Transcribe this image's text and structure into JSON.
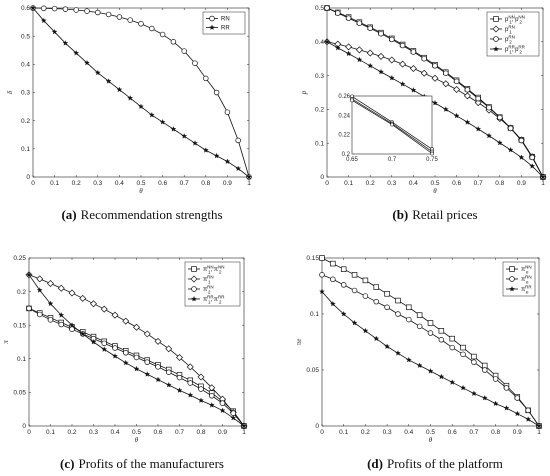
{
  "chart_data": [
    {
      "id": "a",
      "type": "line",
      "caption_tag": "(a)",
      "caption_text": "Recommendation strengths",
      "xlabel": "θ",
      "ylabel": "δ",
      "xlim": [
        0,
        1
      ],
      "ylim": [
        0,
        0.6
      ],
      "xticks": [
        "0",
        "0.1",
        "0.2",
        "0.3",
        "0.4",
        "0.5",
        "0.6",
        "0.7",
        "0.8",
        "0.9",
        "1"
      ],
      "yticks": [
        "0",
        "0.1",
        "0.2",
        "0.3",
        "0.4",
        "0.5",
        "0.6"
      ],
      "legend_position": "top-right",
      "series": [
        {
          "name": "RN",
          "marker": "circle-open",
          "x": [
            0,
            0.05,
            0.1,
            0.15,
            0.2,
            0.25,
            0.3,
            0.35,
            0.4,
            0.45,
            0.5,
            0.55,
            0.6,
            0.65,
            0.7,
            0.75,
            0.8,
            0.85,
            0.9,
            0.95,
            1
          ],
          "y": [
            0.6,
            0.599,
            0.598,
            0.596,
            0.593,
            0.589,
            0.584,
            0.577,
            0.568,
            0.557,
            0.544,
            0.527,
            0.506,
            0.48,
            0.447,
            0.404,
            0.35,
            0.3,
            0.23,
            0.13,
            0
          ]
        },
        {
          "name": "RR",
          "marker": "star",
          "x": [
            0,
            0.05,
            0.1,
            0.15,
            0.2,
            0.25,
            0.3,
            0.35,
            0.4,
            0.45,
            0.5,
            0.55,
            0.6,
            0.65,
            0.7,
            0.75,
            0.8,
            0.85,
            0.9,
            0.95,
            1
          ],
          "y": [
            0.6,
            0.555,
            0.515,
            0.475,
            0.44,
            0.405,
            0.37,
            0.34,
            0.31,
            0.28,
            0.25,
            0.22,
            0.195,
            0.17,
            0.145,
            0.12,
            0.095,
            0.075,
            0.055,
            0.03,
            0
          ]
        }
      ]
    },
    {
      "id": "b",
      "type": "line",
      "caption_tag": "(b)",
      "caption_text": "Retail prices",
      "xlabel": "θ",
      "ylabel": "p",
      "xlim": [
        0,
        1
      ],
      "ylim": [
        0,
        0.5
      ],
      "xticks": [
        "0",
        "0.1",
        "0.2",
        "0.3",
        "0.4",
        "0.5",
        "0.6",
        "0.7",
        "0.8",
        "0.9",
        "1"
      ],
      "yticks": [
        "0",
        "0.1",
        "0.2",
        "0.3",
        "0.4",
        "0.5"
      ],
      "legend_position": "top-right",
      "legend": [
        {
          "base": "p",
          "parts": [
            {
              "sub": "1",
              "sup": "NN"
            },
            {
              "sub": "2",
              "sup": "NN"
            }
          ],
          "marker": "square-open"
        },
        {
          "base": "p",
          "parts": [
            {
              "sub": "1",
              "sup": "RN"
            }
          ],
          "marker": "diamond-open"
        },
        {
          "base": "p",
          "parts": [
            {
              "sub": "2",
              "sup": "RN"
            }
          ],
          "marker": "circle-open"
        },
        {
          "base": "p",
          "parts": [
            {
              "sub": "1",
              "sup": "RR"
            },
            {
              "sub": "2",
              "sup": "RR"
            }
          ],
          "marker": "star"
        }
      ],
      "series": [
        {
          "marker": "square-open",
          "x": [
            0,
            0.05,
            0.1,
            0.15,
            0.2,
            0.25,
            0.3,
            0.35,
            0.4,
            0.45,
            0.5,
            0.55,
            0.6,
            0.65,
            0.7,
            0.75,
            0.8,
            0.85,
            0.9,
            0.95,
            1
          ],
          "y": [
            0.5,
            0.487,
            0.473,
            0.458,
            0.443,
            0.427,
            0.41,
            0.392,
            0.373,
            0.353,
            0.332,
            0.31,
            0.286,
            0.261,
            0.235,
            0.207,
            0.177,
            0.145,
            0.11,
            0.06,
            0
          ]
        },
        {
          "marker": "diamond-open",
          "x": [
            0,
            0.05,
            0.1,
            0.15,
            0.2,
            0.25,
            0.3,
            0.35,
            0.4,
            0.45,
            0.5,
            0.55,
            0.6,
            0.65,
            0.7,
            0.75,
            0.8,
            0.85,
            0.9,
            0.95,
            1
          ],
          "y": [
            0.4,
            0.393,
            0.385,
            0.376,
            0.367,
            0.357,
            0.346,
            0.334,
            0.321,
            0.307,
            0.292,
            0.276,
            0.259,
            0.24,
            0.22,
            0.198,
            0.173,
            0.145,
            0.11,
            0.06,
            0
          ]
        },
        {
          "marker": "circle-open",
          "x": [
            0,
            0.05,
            0.1,
            0.15,
            0.2,
            0.25,
            0.3,
            0.35,
            0.4,
            0.45,
            0.5,
            0.55,
            0.6,
            0.65,
            0.7,
            0.75,
            0.8,
            0.85,
            0.9,
            0.95,
            1
          ],
          "y": [
            0.5,
            0.485,
            0.47,
            0.455,
            0.44,
            0.424,
            0.407,
            0.389,
            0.37,
            0.35,
            0.329,
            0.307,
            0.283,
            0.258,
            0.232,
            0.205,
            0.176,
            0.144,
            0.108,
            0.058,
            0
          ]
        },
        {
          "marker": "star",
          "x": [
            0,
            0.05,
            0.1,
            0.15,
            0.2,
            0.25,
            0.3,
            0.35,
            0.4,
            0.45,
            0.5,
            0.55,
            0.6,
            0.65,
            0.7,
            0.75,
            0.8,
            0.85,
            0.9,
            0.95,
            1
          ],
          "y": [
            0.4,
            0.382,
            0.365,
            0.347,
            0.329,
            0.311,
            0.293,
            0.275,
            0.257,
            0.238,
            0.219,
            0.2,
            0.181,
            0.162,
            0.142,
            0.122,
            0.101,
            0.08,
            0.058,
            0.032,
            0
          ]
        }
      ],
      "inset": {
        "xlim": [
          0.65,
          0.75
        ],
        "ylim": [
          0.2,
          0.26
        ],
        "xticks": [
          "0.65",
          "0.7",
          "0.75"
        ],
        "yticks": [
          "0.2",
          "0.22",
          "0.24",
          "0.26"
        ],
        "lines": [
          {
            "x": [
              0.65,
              0.7,
              0.75
            ],
            "y": [
              0.2595,
              0.233,
              0.205
            ]
          },
          {
            "x": [
              0.65,
              0.7,
              0.75
            ],
            "y": [
              0.257,
              0.2315,
              0.2025
            ]
          },
          {
            "x": [
              0.65,
              0.7,
              0.75
            ],
            "y": [
              0.2555,
              0.2305,
              0.2005
            ]
          }
        ]
      }
    },
    {
      "id": "c",
      "type": "line",
      "caption_tag": "(c)",
      "caption_text": "Profits of the manufacturers",
      "xlabel": "θ",
      "ylabel": "π",
      "xlim": [
        0,
        1
      ],
      "ylim": [
        0,
        0.25
      ],
      "xticks": [
        "0",
        "0.1",
        "0.2",
        "0.3",
        "0.4",
        "0.5",
        "0.6",
        "0.7",
        "0.8",
        "0.9",
        "1"
      ],
      "yticks": [
        "0",
        "0.05",
        "0.1",
        "0.15",
        "0.2",
        "0.25"
      ],
      "legend_position": "top-right",
      "legend": [
        {
          "base": "π",
          "parts": [
            {
              "sub": "1",
              "sup": "NN"
            },
            {
              "sub": "2",
              "sup": "NN"
            }
          ],
          "marker": "square-open"
        },
        {
          "base": "π",
          "parts": [
            {
              "sub": "1",
              "sup": "RN"
            }
          ],
          "marker": "diamond-open"
        },
        {
          "base": "π",
          "parts": [
            {
              "sub": "2",
              "sup": "RN"
            }
          ],
          "marker": "circle-open"
        },
        {
          "base": "π",
          "parts": [
            {
              "sub": "1",
              "sup": "RR"
            },
            {
              "sub": "2",
              "sup": "RR"
            }
          ],
          "marker": "star"
        }
      ],
      "series": [
        {
          "marker": "square-open",
          "x": [
            0,
            0.05,
            0.1,
            0.15,
            0.2,
            0.25,
            0.3,
            0.35,
            0.4,
            0.45,
            0.5,
            0.55,
            0.6,
            0.65,
            0.7,
            0.75,
            0.8,
            0.85,
            0.9,
            0.95,
            1
          ],
          "y": [
            0.175,
            0.168,
            0.161,
            0.154,
            0.147,
            0.14,
            0.133,
            0.126,
            0.119,
            0.112,
            0.105,
            0.098,
            0.091,
            0.084,
            0.076,
            0.068,
            0.059,
            0.049,
            0.037,
            0.022,
            0
          ]
        },
        {
          "marker": "diamond-open",
          "x": [
            0,
            0.05,
            0.1,
            0.15,
            0.2,
            0.25,
            0.3,
            0.35,
            0.4,
            0.45,
            0.5,
            0.55,
            0.6,
            0.65,
            0.7,
            0.75,
            0.8,
            0.85,
            0.9,
            0.95,
            1
          ],
          "y": [
            0.225,
            0.219,
            0.212,
            0.205,
            0.198,
            0.19,
            0.182,
            0.174,
            0.165,
            0.156,
            0.147,
            0.137,
            0.126,
            0.115,
            0.102,
            0.088,
            0.073,
            0.057,
            0.04,
            0.02,
            0
          ]
        },
        {
          "marker": "circle-open",
          "x": [
            0,
            0.05,
            0.1,
            0.15,
            0.2,
            0.25,
            0.3,
            0.35,
            0.4,
            0.45,
            0.5,
            0.55,
            0.6,
            0.65,
            0.7,
            0.75,
            0.8,
            0.85,
            0.9,
            0.95,
            1
          ],
          "y": [
            0.175,
            0.166,
            0.158,
            0.151,
            0.144,
            0.137,
            0.13,
            0.123,
            0.116,
            0.109,
            0.102,
            0.095,
            0.088,
            0.08,
            0.072,
            0.064,
            0.055,
            0.045,
            0.034,
            0.019,
            0
          ]
        },
        {
          "marker": "star",
          "x": [
            0,
            0.05,
            0.1,
            0.15,
            0.2,
            0.25,
            0.3,
            0.35,
            0.4,
            0.45,
            0.5,
            0.55,
            0.6,
            0.65,
            0.7,
            0.75,
            0.8,
            0.85,
            0.9,
            0.95,
            1
          ],
          "y": [
            0.225,
            0.202,
            0.182,
            0.165,
            0.15,
            0.137,
            0.125,
            0.114,
            0.104,
            0.094,
            0.085,
            0.077,
            0.069,
            0.061,
            0.053,
            0.046,
            0.038,
            0.031,
            0.023,
            0.012,
            0
          ]
        }
      ]
    },
    {
      "id": "d",
      "type": "line",
      "caption_tag": "(d)",
      "caption_text": "Profits of the platform",
      "xlabel": "θ",
      "ylabel": "πe",
      "xlim": [
        0,
        1
      ],
      "ylim": [
        0,
        0.15
      ],
      "xticks": [
        "0",
        "0.1",
        "0.2",
        "0.3",
        "0.4",
        "0.5",
        "0.6",
        "0.7",
        "0.8",
        "0.9",
        "1"
      ],
      "yticks": [
        "0",
        "0.05",
        "0.1",
        "0.15"
      ],
      "legend_position": "top-right",
      "legend": [
        {
          "base": "π",
          "parts": [
            {
              "sub": "e",
              "sup": "NN"
            }
          ],
          "marker": "square-open"
        },
        {
          "base": "π",
          "parts": [
            {
              "sub": "e",
              "sup": "RN"
            }
          ],
          "marker": "circle-open"
        },
        {
          "base": "π",
          "parts": [
            {
              "sub": "e",
              "sup": "RR"
            }
          ],
          "marker": "star"
        }
      ],
      "series": [
        {
          "marker": "square-open",
          "x": [
            0,
            0.05,
            0.1,
            0.15,
            0.2,
            0.25,
            0.3,
            0.35,
            0.4,
            0.45,
            0.5,
            0.55,
            0.6,
            0.65,
            0.7,
            0.75,
            0.8,
            0.85,
            0.9,
            0.95,
            1
          ],
          "y": [
            0.15,
            0.145,
            0.14,
            0.135,
            0.13,
            0.124,
            0.118,
            0.112,
            0.106,
            0.099,
            0.092,
            0.085,
            0.078,
            0.07,
            0.062,
            0.054,
            0.045,
            0.036,
            0.026,
            0.014,
            0
          ]
        },
        {
          "marker": "circle-open",
          "x": [
            0,
            0.05,
            0.1,
            0.15,
            0.2,
            0.25,
            0.3,
            0.35,
            0.4,
            0.45,
            0.5,
            0.55,
            0.6,
            0.65,
            0.7,
            0.75,
            0.8,
            0.85,
            0.9,
            0.95,
            1
          ],
          "y": [
            0.135,
            0.131,
            0.126,
            0.121,
            0.116,
            0.111,
            0.106,
            0.1,
            0.095,
            0.089,
            0.083,
            0.077,
            0.07,
            0.064,
            0.057,
            0.05,
            0.042,
            0.034,
            0.025,
            0.014,
            0
          ]
        },
        {
          "marker": "star",
          "x": [
            0,
            0.05,
            0.1,
            0.15,
            0.2,
            0.25,
            0.3,
            0.35,
            0.4,
            0.45,
            0.5,
            0.55,
            0.6,
            0.65,
            0.7,
            0.75,
            0.8,
            0.85,
            0.9,
            0.95,
            1
          ],
          "y": [
            0.12,
            0.109,
            0.1,
            0.092,
            0.085,
            0.078,
            0.071,
            0.065,
            0.059,
            0.054,
            0.049,
            0.044,
            0.039,
            0.034,
            0.029,
            0.025,
            0.02,
            0.016,
            0.011,
            0.006,
            0
          ]
        }
      ]
    }
  ]
}
